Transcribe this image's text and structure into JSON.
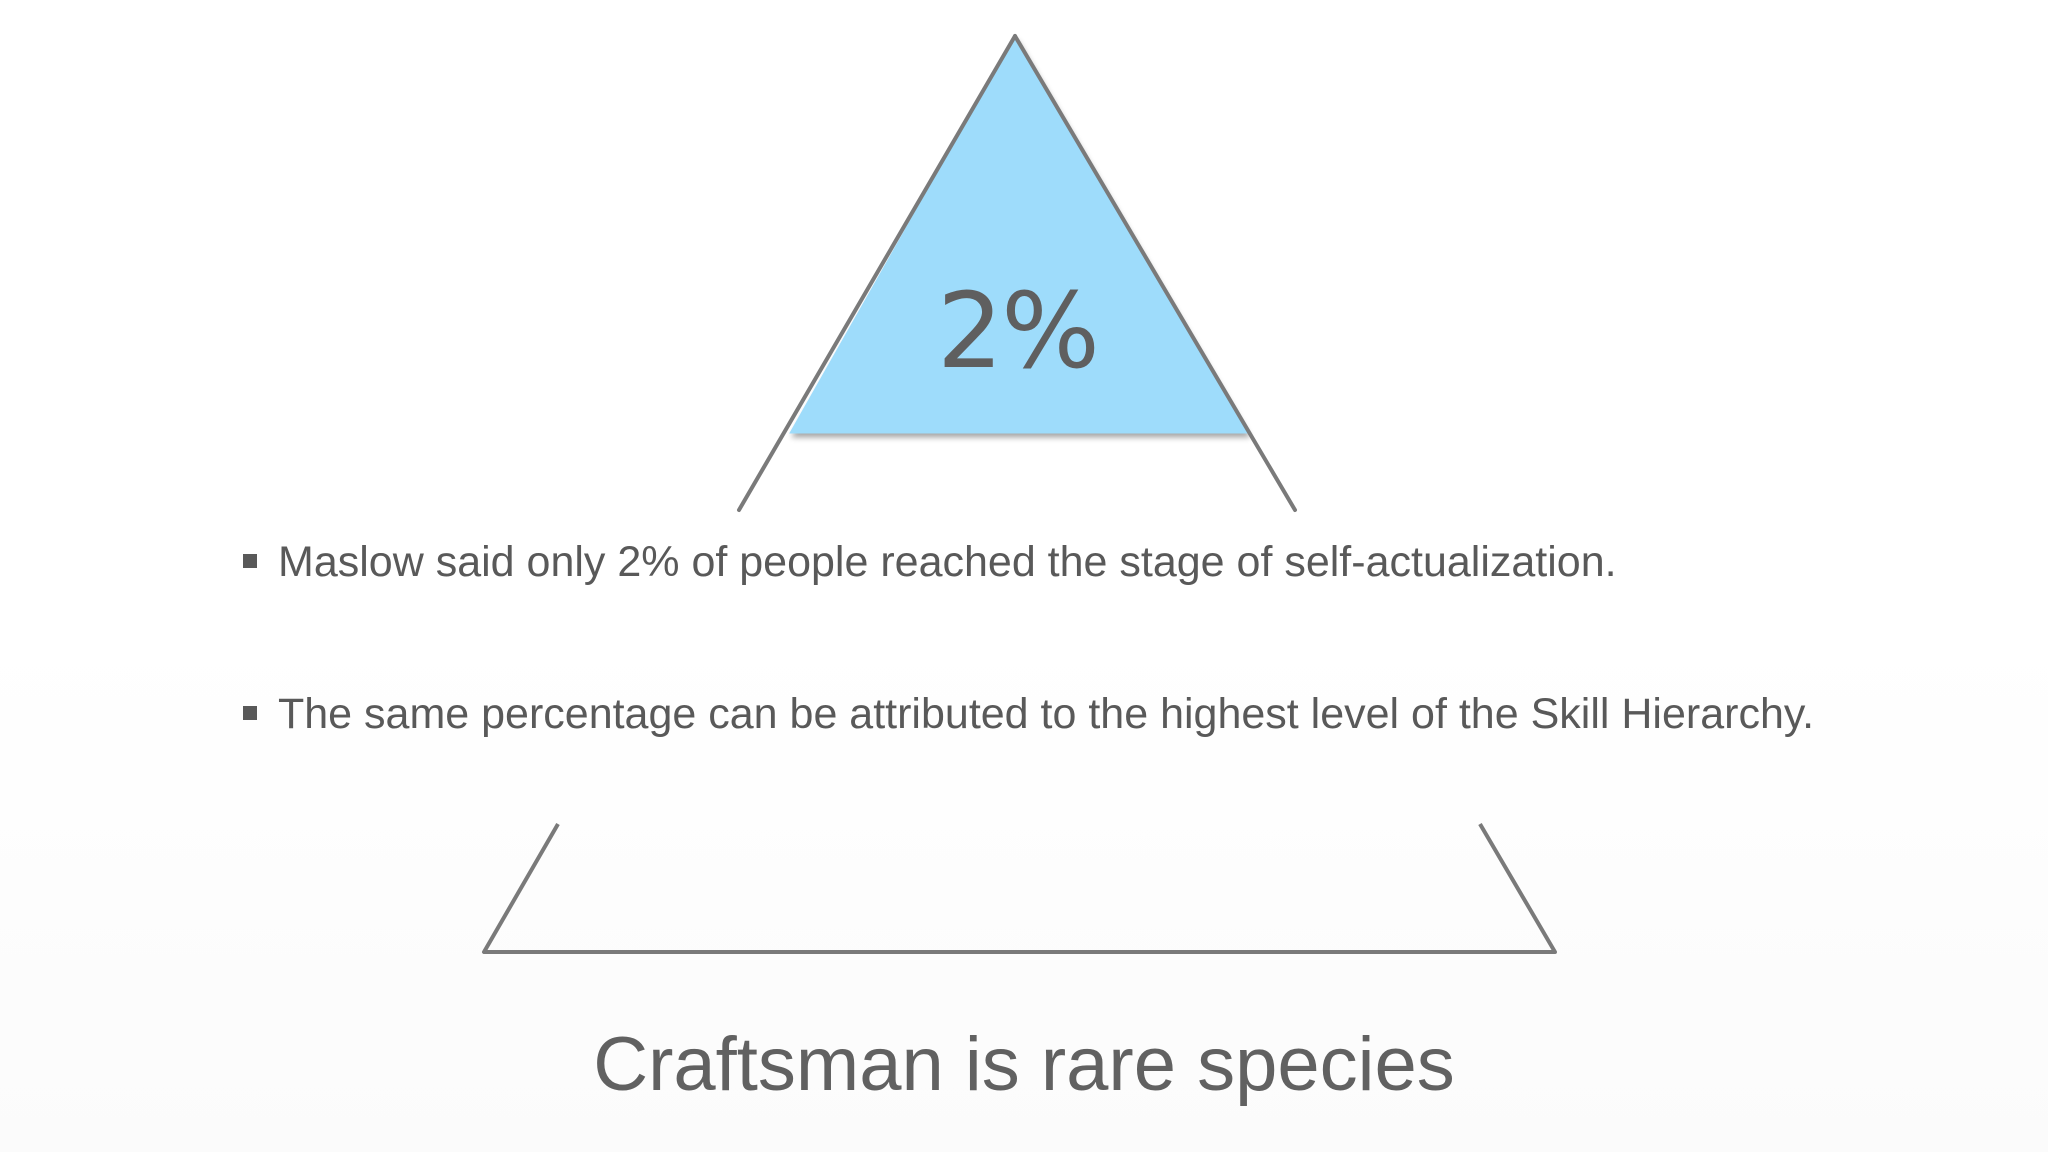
{
  "slide": {
    "peak_value": "2%",
    "bullets": [
      "Maslow said only 2% of people reached the stage of self-actualization.",
      "The same percentage can be attributed to the highest level of the Skill Hierarchy."
    ],
    "caption": "Craftsman is rare species"
  },
  "colors": {
    "apex_fill": "#9edcfb",
    "outline": "#7a7a7a",
    "text": "#595959"
  }
}
